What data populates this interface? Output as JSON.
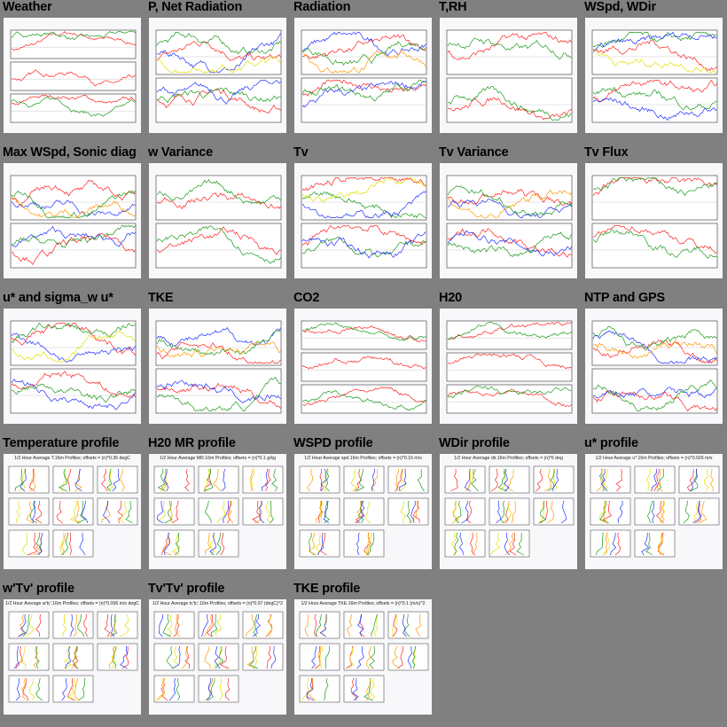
{
  "colors": {
    "background": "#808080",
    "red": "#ff2020",
    "green": "#1a9a1a",
    "blue": "#2030ff",
    "yellow": "#e0e000",
    "orange": "#ff9900",
    "purple": "#b040c0"
  },
  "plots": [
    {
      "title": "Weather",
      "kind": "ts",
      "panels": 3
    },
    {
      "title": "P, Net Radiation",
      "kind": "ts",
      "panels": 2
    },
    {
      "title": "Radiation",
      "kind": "ts",
      "panels": 2
    },
    {
      "title": "T,RH",
      "kind": "ts",
      "panels": 2
    },
    {
      "title": "WSpd, WDir",
      "kind": "ts",
      "panels": 2
    },
    {
      "title": "Max WSpd, Sonic diag",
      "kind": "ts",
      "panels": 2
    },
    {
      "title": "w Variance",
      "kind": "ts",
      "panels": 2
    },
    {
      "title": "Tv",
      "kind": "ts",
      "panels": 2
    },
    {
      "title": "Tv Variance",
      "kind": "ts",
      "panels": 2
    },
    {
      "title": "Tv Flux",
      "kind": "ts",
      "panels": 2
    },
    {
      "title": "u* and sigma_w u*",
      "kind": "ts",
      "panels": 2
    },
    {
      "title": "TKE",
      "kind": "ts",
      "panels": 2
    },
    {
      "title": "CO2",
      "kind": "ts",
      "panels": 3
    },
    {
      "title": "H20",
      "kind": "ts",
      "panels": 3
    },
    {
      "title": "NTP and GPS",
      "kind": "ts",
      "panels": 2
    },
    {
      "title": "Temperature profile",
      "kind": "profile",
      "subtitle": "1/2 Hour Average T.16m Profiles; offsets = (n)*0.36 degC"
    },
    {
      "title": "H20 MR profile",
      "kind": "profile",
      "subtitle": "1/2 Hour Average MR.16m Profiles; offsets = (n)*0.1 g/kg"
    },
    {
      "title": "WSPD profile",
      "kind": "profile",
      "subtitle": "1/2 Hour Average spd.16m Profiles; offsets = (n)*0.16 m/s"
    },
    {
      "title": "WDir profile",
      "kind": "profile",
      "subtitle": "1/2 Hour Average dir.16m Profiles; offsets = (n)*6 deg"
    },
    {
      "title": "u* profile",
      "kind": "profile",
      "subtitle": "1/2 Hour Average u*.16m Profiles; offsets = (n)*0.026 m/s"
    },
    {
      "title": "w'Tv' profile",
      "kind": "profile",
      "subtitle": "1/2 Hour Average w'tc'.16m Profiles; offsets = (n)*0.006 m/s degC"
    },
    {
      "title": "Tv'Tv' profile",
      "kind": "profile",
      "subtitle": "1/2 Hour Average tc'tc'.16m Profiles; offsets = (n)*0.07 (degC)^2"
    },
    {
      "title": "TKE profile",
      "kind": "profile",
      "subtitle": "1/2 Hour Average TKE.16m Profiles; offsets = (n)*0.1 (m/s)^2"
    }
  ]
}
